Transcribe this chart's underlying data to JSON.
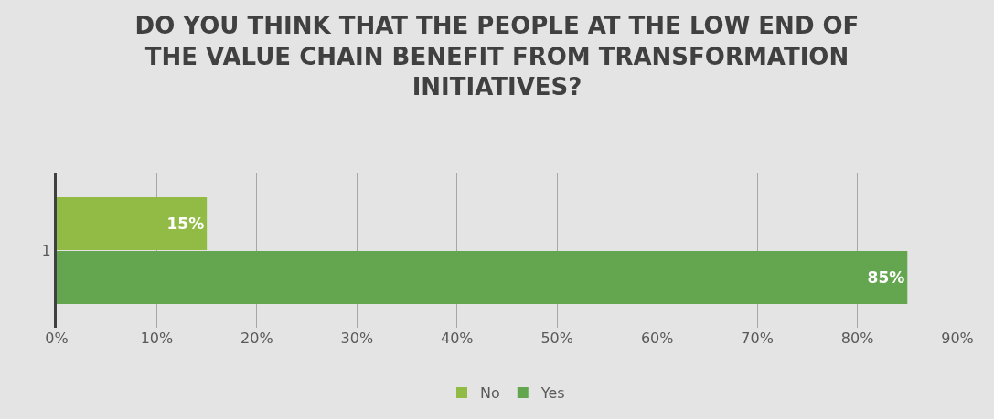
{
  "chart_data": {
    "type": "bar",
    "orientation": "horizontal",
    "title": "DO YOU THINK THAT THE PEOPLE AT THE LOW END OF THE VALUE CHAIN BENEFIT FROM TRANSFORMATION INITIATIVES?",
    "categories": [
      "1"
    ],
    "series": [
      {
        "name": "No",
        "color": "#92bb45",
        "values": [
          15
        ],
        "value_labels": [
          "15%"
        ]
      },
      {
        "name": "Yes",
        "color": "#63a64f",
        "values": [
          85
        ],
        "value_labels": [
          "85%"
        ]
      }
    ],
    "xlim": [
      0,
      90
    ],
    "xticks": [
      {
        "value": 0,
        "label": "0%"
      },
      {
        "value": 10,
        "label": "10%"
      },
      {
        "value": 20,
        "label": "20%"
      },
      {
        "value": 30,
        "label": "30%"
      },
      {
        "value": 40,
        "label": "40%"
      },
      {
        "value": 50,
        "label": "50%"
      },
      {
        "value": 60,
        "label": "60%"
      },
      {
        "value": 70,
        "label": "70%"
      },
      {
        "value": 80,
        "label": "80%"
      },
      {
        "value": 90,
        "label": "90%"
      }
    ],
    "grid": "x",
    "legend": "bottom"
  }
}
